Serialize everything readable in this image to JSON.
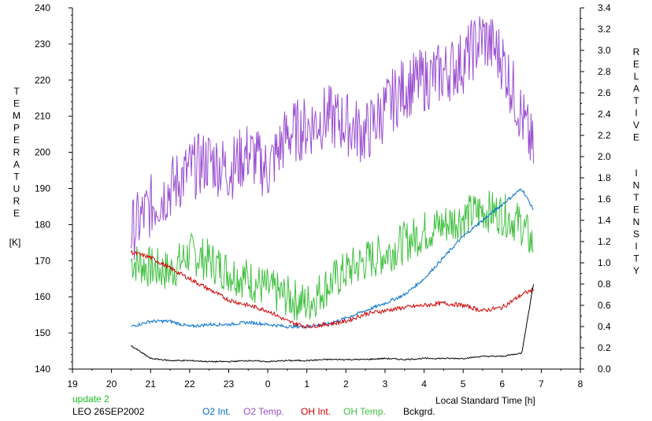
{
  "chart_data": {
    "type": "line",
    "x_range": [
      19,
      8
    ],
    "x_ticks": [
      "19",
      "20",
      "21",
      "22",
      "23",
      "0",
      "1",
      "2",
      "3",
      "4",
      "5",
      "6",
      "7",
      "8"
    ],
    "xlabel": "Local Standard Time [h]",
    "y_left": {
      "label_letters": [
        "T",
        "E",
        "M",
        "P",
        "E",
        "R",
        "A",
        "T",
        "U",
        "R",
        "E"
      ],
      "unit": "[K]",
      "range": [
        140,
        240
      ],
      "ticks": [
        "140",
        "150",
        "160",
        "170",
        "180",
        "190",
        "200",
        "210",
        "220",
        "230",
        "240"
      ]
    },
    "y_right": {
      "label_words": [
        [
          "R",
          "E",
          "L",
          "A",
          "T",
          "I",
          "V",
          "E"
        ],
        [
          "I",
          "N",
          "T",
          "E",
          "N",
          "S",
          "I",
          "T",
          "Y"
        ]
      ],
      "range": [
        0.0,
        3.4
      ],
      "ticks": [
        "0.0",
        "0.2",
        "0.4",
        "0.6",
        "0.8",
        "1.0",
        "1.2",
        "1.4",
        "1.6",
        "1.8",
        "2.0",
        "2.2",
        "2.4",
        "2.6",
        "2.8",
        "3.0",
        "3.2",
        "3.4"
      ]
    },
    "update_text": "update 2",
    "station_text": "LEO 26SEP2002",
    "x_hours_since_19": [
      1.5,
      2.0,
      2.5,
      3.0,
      3.5,
      4.0,
      4.5,
      5.0,
      5.5,
      6.0,
      6.5,
      7.0,
      7.5,
      8.0,
      8.5,
      9.0,
      9.5,
      10.0,
      10.5,
      11.0,
      11.5,
      11.8
    ],
    "series": [
      {
        "name": "O2 Int.",
        "axis": "right",
        "color": "#0070d0",
        "values": [
          0.4,
          0.45,
          0.45,
          0.4,
          0.42,
          0.42,
          0.44,
          0.42,
          0.4,
          0.4,
          0.42,
          0.48,
          0.55,
          0.62,
          0.7,
          0.85,
          1.05,
          1.25,
          1.4,
          1.55,
          1.7,
          1.5
        ]
      },
      {
        "name": "O2 Temp.",
        "axis": "left",
        "color": "#9a4fd0",
        "values": [
          178,
          185,
          190,
          195,
          198,
          195,
          200,
          195,
          205,
          207,
          210,
          208,
          205,
          212,
          218,
          220,
          222,
          225,
          232,
          226,
          210,
          200
        ]
      },
      {
        "name": "OH Int.",
        "axis": "right",
        "color": "#d00000",
        "values": [
          1.1,
          1.05,
          0.95,
          0.85,
          0.75,
          0.65,
          0.6,
          0.55,
          0.45,
          0.4,
          0.42,
          0.45,
          0.52,
          0.55,
          0.58,
          0.6,
          0.62,
          0.6,
          0.55,
          0.58,
          0.7,
          0.75
        ]
      },
      {
        "name": "OH Temp.",
        "axis": "left",
        "color": "#40c040",
        "values": [
          170,
          168,
          167,
          172,
          170,
          167,
          165,
          162,
          160,
          158,
          163,
          167,
          170,
          172,
          175,
          178,
          180,
          182,
          184,
          183,
          180,
          174
        ]
      },
      {
        "name": "Bckgrd.",
        "axis": "right",
        "color": "#000000",
        "values": [
          0.22,
          0.1,
          0.08,
          0.08,
          0.07,
          0.07,
          0.08,
          0.07,
          0.08,
          0.08,
          0.09,
          0.09,
          0.09,
          0.1,
          0.09,
          0.1,
          0.1,
          0.1,
          0.12,
          0.12,
          0.15,
          0.8
        ]
      }
    ]
  },
  "colors": {
    "update": "#20c020",
    "o2_int": "#0070d0",
    "o2_temp": "#9a4fd0",
    "oh_int": "#d00000",
    "oh_temp": "#40c040",
    "bckgrd": "#000000"
  }
}
